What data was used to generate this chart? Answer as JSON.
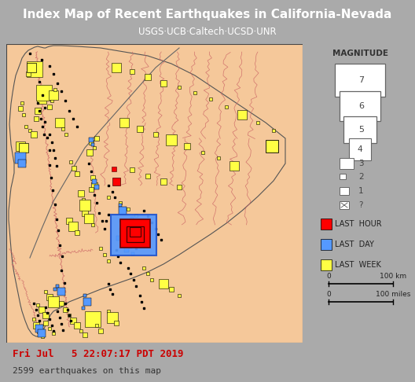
{
  "title": "Index Map of Recent Earthquakes in California-Nevada",
  "subtitle": "USGS·UCB·Caltech·UCSD·UNR",
  "title_color": "#ffffff",
  "header_bg": "#888888",
  "map_bg": "#f5c89a",
  "outer_bg": "#aaaaaa",
  "legend_bg": "#cccccc",
  "datetime_text": "Fri Jul   5 22:07:17 PDT 2019",
  "count_text": "2599 earthquakes on this map",
  "datetime_color": "#cc0000",
  "count_color": "#333333",
  "fault_color": "#cc6666",
  "state_border_color": "#555555",
  "coast_color": "#888888",
  "quake_outline": "#000000",
  "color_red": "#ff0000",
  "color_blue": "#5599ff",
  "color_yellow": "#ffff44",
  "scale_km": "100 km",
  "scale_mi": "100 miles"
}
